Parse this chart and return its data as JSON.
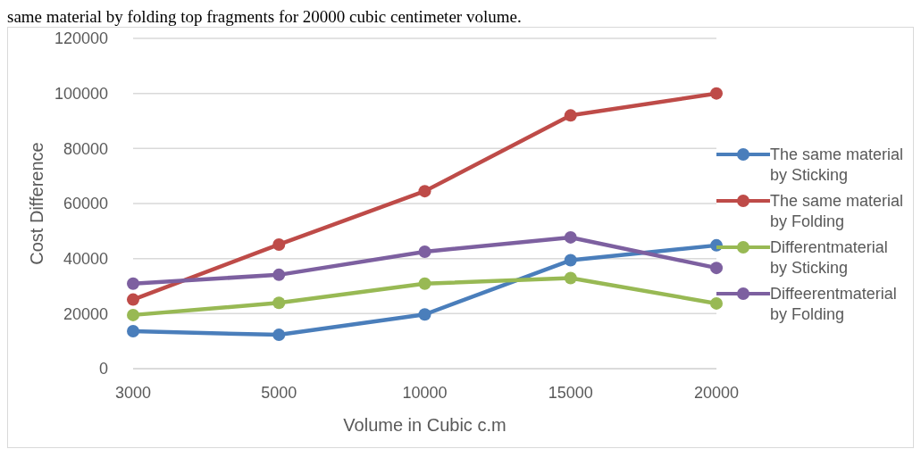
{
  "chart_data": {
    "type": "line",
    "xlabel": "Volume in Cubic c.m",
    "ylabel": "Cost Difference",
    "annotations": [
      "same material by folding top fragments for 20000 cubic centimeter volume."
    ],
    "categories": [
      "3000",
      "5000",
      "10000",
      "15000",
      "20000"
    ],
    "series": [
      {
        "name": "The same material by Sticking",
        "color": "#4a7ebb",
        "values": [
          13600,
          12300,
          19700,
          39400,
          44800
        ]
      },
      {
        "name": "The same material by Folding",
        "color": "#be4b48",
        "values": [
          25100,
          45100,
          64500,
          92000,
          100000
        ]
      },
      {
        "name": "Differentmaterial by Sticking",
        "color": "#98b954",
        "values": [
          19500,
          23900,
          30900,
          32900,
          23700
        ]
      },
      {
        "name": "Diffeerentmaterial by Folding",
        "color": "#7d60a0",
        "values": [
          30900,
          34100,
          42500,
          47700,
          36600
        ]
      }
    ],
    "ylim": [
      0,
      120000
    ],
    "yticks": [
      0,
      20000,
      40000,
      60000,
      80000,
      100000,
      120000
    ],
    "grid": "y",
    "legend": "right",
    "marker": "circle",
    "line_style": "solid"
  }
}
